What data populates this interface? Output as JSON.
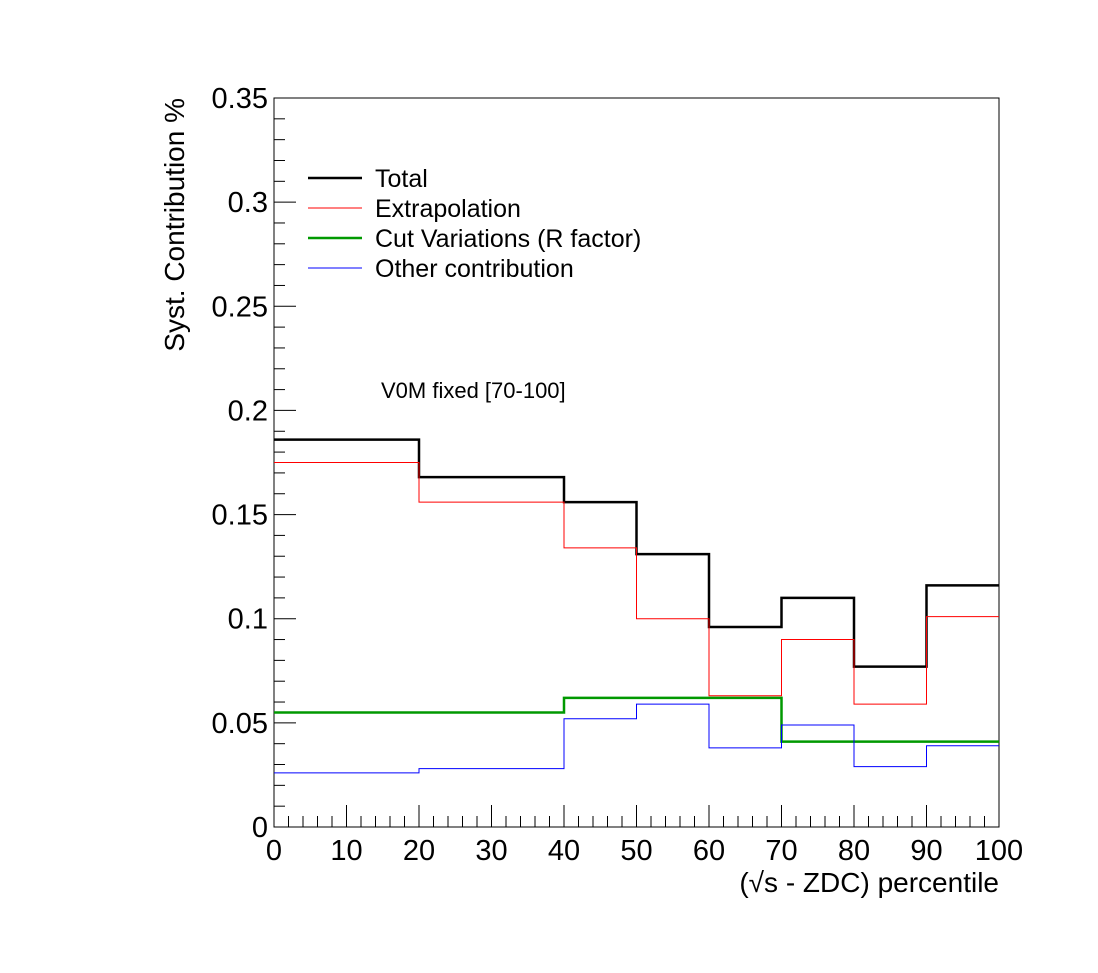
{
  "chart_data": {
    "type": "line",
    "title": "",
    "xlabel": "(√s - ZDC) percentile",
    "ylabel": "Syst. Contribution %",
    "xlim": [
      0,
      100
    ],
    "ylim": [
      0,
      0.35
    ],
    "x_ticks": [
      "0",
      "10",
      "20",
      "30",
      "40",
      "50",
      "60",
      "70",
      "80",
      "90",
      "100"
    ],
    "y_ticks": [
      "0",
      "0.05",
      "0.1",
      "0.15",
      "0.2",
      "0.25",
      "0.3",
      "0.35"
    ],
    "bin_edges": [
      0,
      20,
      40,
      50,
      60,
      70,
      80,
      90,
      100
    ],
    "annotation": "V0M fixed [70-100]",
    "legend_position": "top-left",
    "series": [
      {
        "name": "Total",
        "color": "#000000",
        "values": [
          0.186,
          0.168,
          0.156,
          0.131,
          0.096,
          0.11,
          0.077,
          0.116
        ]
      },
      {
        "name": "Extrapolation",
        "color": "#ff0000",
        "values": [
          0.175,
          0.156,
          0.134,
          0.1,
          0.063,
          0.09,
          0.059,
          0.101
        ]
      },
      {
        "name": "Cut Variations (R factor)",
        "color": "#009900",
        "values": [
          0.055,
          0.055,
          0.062,
          0.062,
          0.062,
          0.041,
          0.041,
          0.041
        ]
      },
      {
        "name": "Other contribution",
        "color": "#0000ff",
        "values": [
          0.026,
          0.028,
          0.052,
          0.059,
          0.038,
          0.049,
          0.029,
          0.039
        ]
      }
    ]
  }
}
